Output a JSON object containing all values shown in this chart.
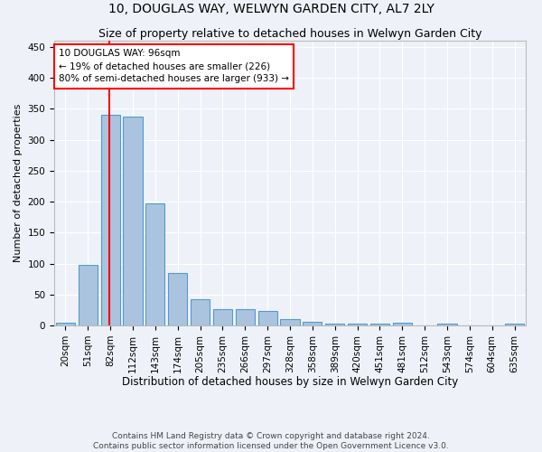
{
  "title": "10, DOUGLAS WAY, WELWYN GARDEN CITY, AL7 2LY",
  "subtitle": "Size of property relative to detached houses in Welwyn Garden City",
  "xlabel": "Distribution of detached houses by size in Welwyn Garden City",
  "ylabel": "Number of detached properties",
  "footer_line1": "Contains HM Land Registry data © Crown copyright and database right 2024.",
  "footer_line2": "Contains public sector information licensed under the Open Government Licence v3.0.",
  "bar_labels": [
    "20sqm",
    "51sqm",
    "82sqm",
    "112sqm",
    "143sqm",
    "174sqm",
    "205sqm",
    "235sqm",
    "266sqm",
    "297sqm",
    "328sqm",
    "358sqm",
    "389sqm",
    "420sqm",
    "451sqm",
    "481sqm",
    "512sqm",
    "543sqm",
    "574sqm",
    "604sqm",
    "635sqm"
  ],
  "bar_values": [
    5,
    98,
    340,
    337,
    197,
    85,
    42,
    27,
    27,
    24,
    10,
    6,
    3,
    3,
    3,
    5,
    0,
    3,
    0,
    0,
    3
  ],
  "bar_color": "#aac4e0",
  "bar_edge_color": "#5599cc",
  "bar_edge_width": 0.8,
  "annotation_text_line1": "10 DOUGLAS WAY: 96sqm",
  "annotation_text_line2": "← 19% of detached houses are smaller (226)",
  "annotation_text_line3": "80% of semi-detached houses are larger (933) →",
  "annotation_box_color": "white",
  "annotation_box_edge_color": "red",
  "vline_color": "red",
  "vline_sqm": 96,
  "bin_starts": [
    20,
    51,
    82,
    112,
    143,
    174,
    205,
    235,
    266,
    297,
    328,
    358,
    389,
    420,
    451,
    481,
    512,
    543,
    574,
    604,
    635
  ],
  "ylim": [
    0,
    460
  ],
  "yticks": [
    0,
    50,
    100,
    150,
    200,
    250,
    300,
    350,
    400,
    450
  ],
  "bg_color": "#eef2f8",
  "plot_bg_color": "#eef2f8",
  "grid_color": "#ffffff",
  "title_fontsize": 10,
  "subtitle_fontsize": 9,
  "xlabel_fontsize": 8.5,
  "ylabel_fontsize": 8,
  "tick_fontsize": 7.5,
  "annotation_fontsize": 7.5,
  "footer_fontsize": 6.5
}
